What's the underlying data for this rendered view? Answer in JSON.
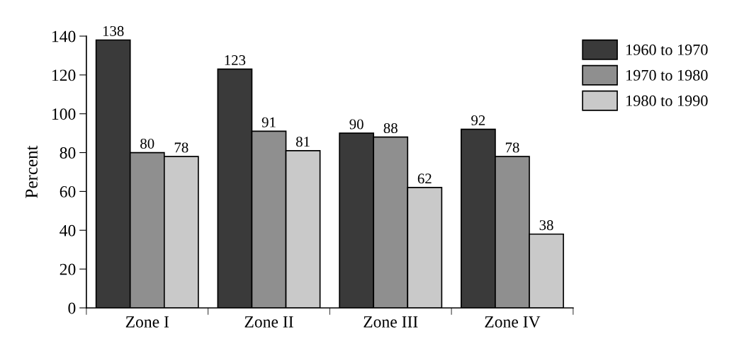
{
  "chart_data": {
    "type": "bar",
    "ylabel": "Percent",
    "categories": [
      "Zone I",
      "Zone II",
      "Zone III",
      "Zone IV"
    ],
    "series": [
      {
        "name": "1960 to 1970",
        "color": "#3a3a3a",
        "values": [
          138,
          123,
          90,
          92
        ]
      },
      {
        "name": "1970 to 1980",
        "color": "#8f8f8f",
        "values": [
          80,
          91,
          88,
          78
        ]
      },
      {
        "name": "1980 to 1990",
        "color": "#c9c9c9",
        "values": [
          78,
          81,
          62,
          38
        ]
      }
    ],
    "ylim": [
      0,
      140
    ],
    "yticks": [
      0,
      20,
      40,
      60,
      80,
      100,
      120,
      140
    ],
    "data_labels": true,
    "grid": false,
    "legend": "top right"
  }
}
